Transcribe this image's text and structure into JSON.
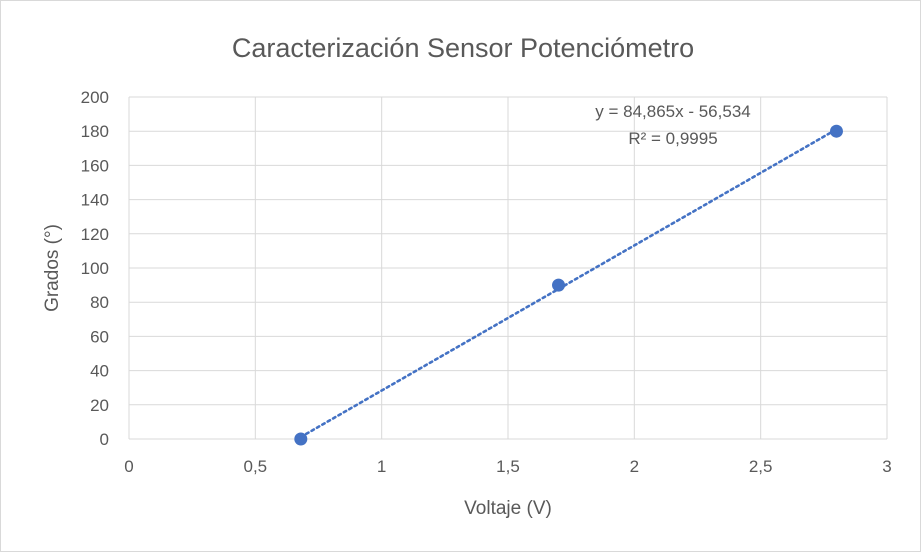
{
  "chart_data": {
    "type": "scatter",
    "title": "Caracterización Sensor Potenciómetro",
    "xlabel": "Voltaje (V)",
    "ylabel": "Grados (°)",
    "xlim": [
      0,
      3
    ],
    "ylim": [
      0,
      200
    ],
    "x_ticks": [
      0,
      0.5,
      1,
      1.5,
      2,
      2.5,
      3
    ],
    "y_ticks": [
      0,
      20,
      40,
      60,
      80,
      100,
      120,
      140,
      160,
      180,
      200
    ],
    "x_tick_labels": [
      "0",
      "0,5",
      "1",
      "1,5",
      "2",
      "2,5",
      "3"
    ],
    "y_tick_labels": [
      "0",
      "20",
      "40",
      "60",
      "80",
      "100",
      "120",
      "140",
      "160",
      "180",
      "200"
    ],
    "grid": true,
    "points": [
      {
        "x": 0.68,
        "y": 0
      },
      {
        "x": 1.7,
        "y": 90
      },
      {
        "x": 2.8,
        "y": 180
      }
    ],
    "trendline": {
      "type": "linear",
      "slope": 84.865,
      "intercept": -56.534,
      "x_range": [
        0.68,
        2.8
      ],
      "equation_label": "y = 84,865x - 56,534",
      "r2_label": "R² = 0,9995",
      "color": "#4472c4"
    },
    "marker_color": "#4472c4",
    "grid_color": "#d9d9d9"
  }
}
